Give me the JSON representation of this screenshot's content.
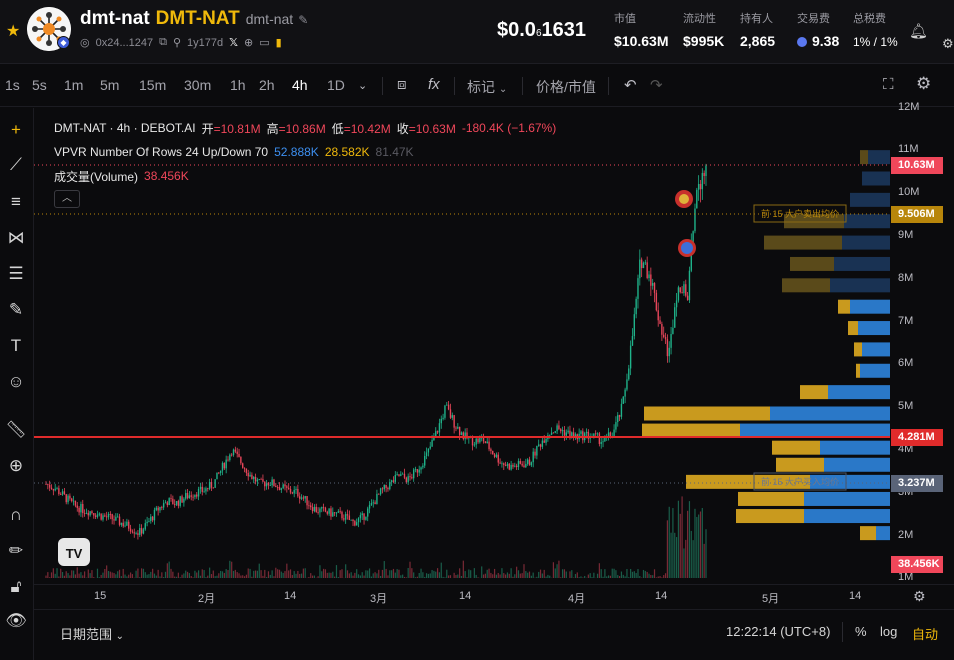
{
  "header": {
    "name": "dmt-nat",
    "symbol": "DMT-NAT",
    "subname": "dmt-nat",
    "address": "0x24...1247",
    "creator": "1y177d",
    "price_main": "$0.0",
    "price_zeros": "6",
    "price_rest": "1631",
    "stats": [
      {
        "label": "市值",
        "value": "$10.63M"
      },
      {
        "label": "流动性",
        "value": "$995K"
      },
      {
        "label": "持有人",
        "value": "2,865"
      },
      {
        "label": "交易费",
        "value": "9.38"
      },
      {
        "label": "总税费",
        "value": "1% / 1%"
      }
    ]
  },
  "toolbar": {
    "timeframes": [
      "1s",
      "5s",
      "1m",
      "5m",
      "15m",
      "30m",
      "1h",
      "2h",
      "4h",
      "1D"
    ],
    "active_timeframe": "4h",
    "indicators_label": "fx",
    "mark_label": "标记",
    "price_toggle_label": "价格/市值"
  },
  "legend": {
    "symbol_line": "DMT-NAT · 4h · DEBOT.AI",
    "open_label": "开",
    "open": "=10.81M",
    "high_label": "高",
    "high": "=10.86M",
    "low_label": "低",
    "low": "=10.42M",
    "close_label": "收",
    "close": "=10.63M",
    "change": "-180.4K (−1.67%)",
    "vpvr_label": "VPVR Number Of Rows 24 Up/Down 70",
    "vpvr_up": "52.888K",
    "vpvr_down": "28.582K",
    "vpvr_total": "81.47K",
    "volume_label": "成交量(Volume)",
    "volume_value": "38.456K"
  },
  "annotations": {
    "top_avg": "前 15 大户卖出均价",
    "bottom_avg": "前 15 大户买入均价"
  },
  "price_axis": {
    "ticks": [
      "12M",
      "11M",
      "10M",
      "9M",
      "8M",
      "7M",
      "6M",
      "5M",
      "4M",
      "3M",
      "2M",
      "1M"
    ],
    "tags": [
      {
        "text": "10.63M",
        "color": "#f0475a"
      },
      {
        "text": "9.506M",
        "color": "#b8860b"
      },
      {
        "text": "4.281M",
        "color": "#e02b2b"
      },
      {
        "text": "3.237M",
        "color": "#5a6478"
      },
      {
        "text": "38.456K",
        "color": "#f0475a"
      }
    ]
  },
  "time_axis": {
    "ticks": [
      "15",
      "2月",
      "14",
      "3月",
      "14",
      "4月",
      "14",
      "5月",
      "14"
    ]
  },
  "bottom": {
    "range_label": "日期范围",
    "clock": "12:22:14 (UTC+8)",
    "percent": "%",
    "log": "log",
    "auto": "自动"
  },
  "chart_data": {
    "type": "candlestick",
    "title": "DMT-NAT · 4h · DEBOT.AI",
    "ylabel": "",
    "ylim": [
      1000000,
      12000000
    ],
    "x_ticks": [
      "15",
      "2月",
      "14",
      "3月",
      "14",
      "4月",
      "14",
      "5月",
      "14"
    ],
    "close_path_M": [
      3.2,
      3.1,
      2.9,
      2.7,
      2.6,
      2.55,
      2.45,
      2.4,
      2.3,
      2.2,
      2.05,
      2.3,
      2.6,
      2.8,
      2.75,
      2.9,
      3.0,
      3.05,
      3.2,
      3.6,
      4.0,
      3.7,
      3.4,
      3.2,
      3.25,
      3.15,
      3.05,
      3.0,
      2.8,
      2.6,
      2.55,
      2.5,
      2.45,
      2.3,
      2.4,
      2.7,
      3.0,
      3.2,
      3.4,
      3.3,
      3.55,
      3.9,
      4.4,
      5.0,
      4.6,
      4.3,
      4.2,
      4.25,
      3.95,
      3.7,
      3.6,
      3.65,
      3.7,
      4.1,
      4.4,
      4.5,
      4.4,
      4.3,
      4.35,
      4.3,
      4.2,
      4.4,
      5.0,
      6.5,
      8.5,
      8.1,
      7.0,
      6.2,
      8.0,
      7.5,
      10.2,
      10.63
    ],
    "last": {
      "open": 10810000,
      "high": 10860000,
      "low": 10420000,
      "close": 10630000
    },
    "series": [
      {
        "name": "VPVR Up",
        "total": "52.888K"
      },
      {
        "name": "VPVR Down",
        "total": "28.582K"
      },
      {
        "name": "成交量(Volume)",
        "last": "38.456K"
      }
    ],
    "horizontal_lines_M": [
      10.63,
      9.506,
      4.281,
      3.237
    ]
  }
}
